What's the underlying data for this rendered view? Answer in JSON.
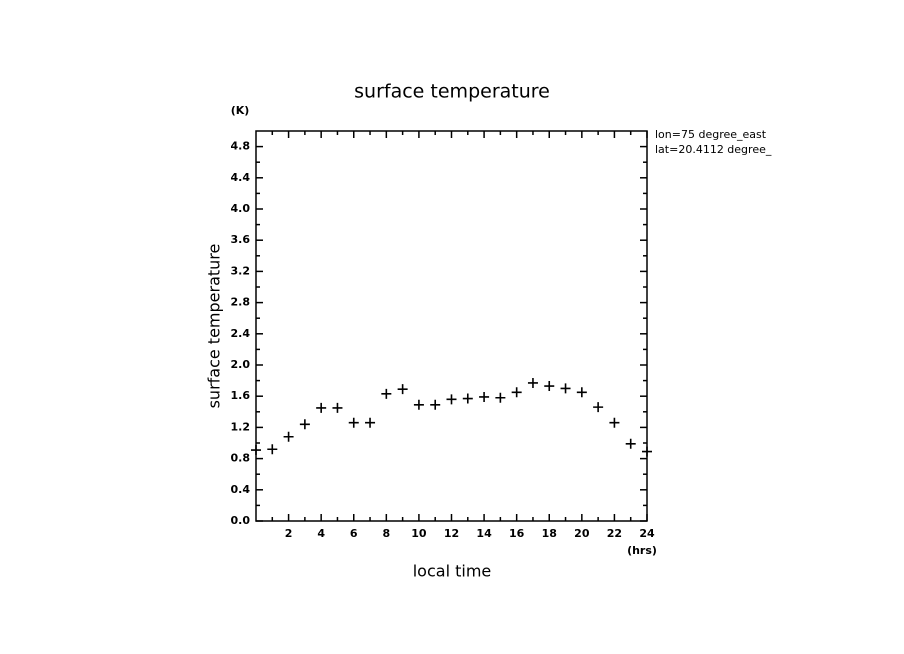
{
  "chart_data": {
    "type": "scatter",
    "title": "surface temperature",
    "x_label": "local time",
    "y_label": "surface temperature",
    "x_unit": "(hrs)",
    "y_unit": "(K)",
    "annotations": [
      "lon=75 degree_east",
      "lat=20.4112 degree_"
    ],
    "x": [
      0,
      1,
      2,
      3,
      4,
      5,
      6,
      7,
      8,
      9,
      10,
      11,
      12,
      13,
      14,
      15,
      16,
      17,
      18,
      19,
      20,
      21,
      22,
      23,
      24
    ],
    "values": [
      0.91,
      0.92,
      1.08,
      1.24,
      1.45,
      1.45,
      1.26,
      1.26,
      1.63,
      1.69,
      1.49,
      1.49,
      1.56,
      1.57,
      1.59,
      1.58,
      1.65,
      1.77,
      1.73,
      1.7,
      1.65,
      1.46,
      1.26,
      0.99,
      0.89
    ],
    "color": "#000000",
    "xlim": [
      0,
      24
    ],
    "xticks": [
      2,
      4,
      6,
      8,
      10,
      12,
      14,
      16,
      18,
      20,
      22,
      24
    ],
    "ylim": [
      0,
      5
    ],
    "yticks": [
      {
        "value": 0,
        "label": "0.0"
      },
      0.4,
      0.8,
      1.2,
      1.6,
      {
        "value": 2,
        "label": "2.0"
      },
      2.4,
      2.8,
      3.2,
      3.6,
      {
        "value": 4,
        "label": "4.0"
      },
      4.4,
      4.8
    ]
  }
}
